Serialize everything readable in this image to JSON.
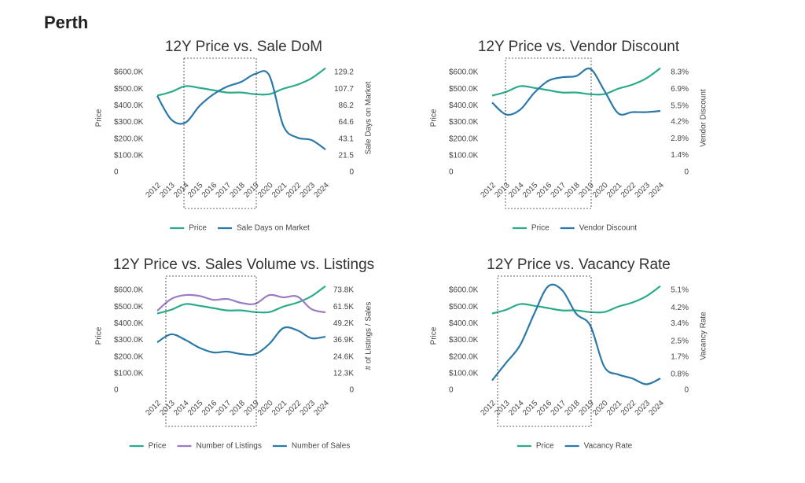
{
  "title": "Perth",
  "chart_data": [
    {
      "type": "line",
      "title": "12Y Price vs. Sale DoM",
      "ylabel": "Price",
      "y2label": "Sale Days on Market",
      "categories": [
        "2012",
        "2013",
        "2014",
        "2015",
        "2016",
        "2017",
        "2018",
        "2019",
        "2020",
        "2021",
        "2022",
        "2023",
        "2024"
      ],
      "ylim": [
        0,
        650000
      ],
      "yticks": [
        0,
        {
          "value": 100000,
          "label": "$100.0K"
        },
        {
          "value": 200000,
          "label": "$200.0K"
        },
        {
          "value": 300000,
          "label": "$300.0K"
        },
        {
          "value": 400000,
          "label": "$400.0K"
        },
        {
          "value": 500000,
          "label": "$500.0K"
        },
        {
          "value": 600000,
          "label": "$600.0K"
        }
      ],
      "y2lim": [
        0,
        140
      ],
      "y2ticks": [
        0,
        21.5,
        43.1,
        64.6,
        86.2,
        107.7,
        129.2
      ],
      "series": [
        {
          "name": "Price",
          "color": "#2bab8b",
          "values": [
            460000,
            483000,
            517000,
            507000,
            493000,
            479000,
            479000,
            469000,
            469000,
            502000,
            526000,
            564000,
            625000
          ]
        },
        {
          "name": "Sale Days on Market",
          "color": "#2b79a8",
          "axis": "y2",
          "values": [
            98.7,
            68.2,
            64.1,
            85.5,
            100.7,
            110.9,
            117.0,
            127.2,
            125.1,
            60.0,
            44.8,
            41.7,
            29.5
          ]
        }
      ]
    },
    {
      "type": "line",
      "title": "12Y Price vs. Vendor Discount",
      "ylabel": "Price",
      "y2label": "Vendor Discount",
      "categories": [
        "2012",
        "2013",
        "2014",
        "2015",
        "2016",
        "2017",
        "2018",
        "2019",
        "2020",
        "2021",
        "2022",
        "2023",
        "2024"
      ],
      "ylim": [
        0,
        650000
      ],
      "yticks": [
        0,
        {
          "value": 100000,
          "label": "$100.0K"
        },
        {
          "value": 200000,
          "label": "$200.0K"
        },
        {
          "value": 300000,
          "label": "$300.0K"
        },
        {
          "value": 400000,
          "label": "$400.0K"
        },
        {
          "value": 500000,
          "label": "$500.0K"
        },
        {
          "value": 600000,
          "label": "$600.0K"
        }
      ],
      "y2lim": [
        0,
        9
      ],
      "y2ticks": [
        0,
        {
          "value": 1.4,
          "label": "1.4%"
        },
        {
          "value": 2.8,
          "label": "2.8%"
        },
        {
          "value": 4.2,
          "label": "4.2%"
        },
        {
          "value": 5.5,
          "label": "5.5%"
        },
        {
          "value": 6.9,
          "label": "6.9%"
        },
        {
          "value": 8.3,
          "label": "8.3%"
        }
      ],
      "series": [
        {
          "name": "Price",
          "color": "#2bab8b",
          "values": [
            460000,
            483000,
            517000,
            507000,
            493000,
            479000,
            479000,
            469000,
            469000,
            502000,
            526000,
            564000,
            625000
          ]
        },
        {
          "name": "Vendor Discount",
          "color": "#2b79a8",
          "axis": "y2",
          "values": [
            5.8,
            4.8,
            5.2,
            6.6,
            7.6,
            7.9,
            8.0,
            8.6,
            6.8,
            4.9,
            5.0,
            5.0,
            5.1
          ]
        }
      ]
    },
    {
      "type": "line",
      "title": "12Y Price vs. Sales Volume vs. Listings",
      "ylabel": "Price",
      "y2label": "# of Listings / Sales",
      "categories": [
        "2012",
        "2013",
        "2014",
        "2015",
        "2016",
        "2017",
        "2018",
        "2019",
        "2020",
        "2021",
        "2022",
        "2023",
        "2024"
      ],
      "ylim": [
        0,
        650000
      ],
      "yticks": [
        0,
        {
          "value": 100000,
          "label": "$100.0K"
        },
        {
          "value": 200000,
          "label": "$200.0K"
        },
        {
          "value": 300000,
          "label": "$300.0K"
        },
        {
          "value": 400000,
          "label": "$400.0K"
        },
        {
          "value": 500000,
          "label": "$500.0K"
        },
        {
          "value": 600000,
          "label": "$600.0K"
        }
      ],
      "y2lim": [
        0,
        80000
      ],
      "y2ticks": [
        0,
        {
          "value": 12300,
          "label": "12.3K"
        },
        {
          "value": 24600,
          "label": "24.6K"
        },
        {
          "value": 36900,
          "label": "36.9K"
        },
        {
          "value": 49200,
          "label": "49.2K"
        },
        {
          "value": 61500,
          "label": "61.5K"
        },
        {
          "value": 73800,
          "label": "73.8K"
        }
      ],
      "series": [
        {
          "name": "Price",
          "color": "#2bab8b",
          "values": [
            460000,
            483000,
            517000,
            507000,
            493000,
            479000,
            479000,
            469000,
            469000,
            502000,
            526000,
            564000,
            625000
          ]
        },
        {
          "name": "Number of Listings",
          "color": "#9b7cc4",
          "axis": "y2",
          "values": [
            58700,
            67400,
            70300,
            69700,
            66800,
            67400,
            64500,
            63900,
            70300,
            68600,
            69200,
            59900,
            57500
          ]
        },
        {
          "name": "Number of Sales",
          "color": "#2b79a8",
          "axis": "y2",
          "values": [
            35400,
            41300,
            37200,
            31400,
            27900,
            28500,
            26700,
            26700,
            34300,
            45900,
            44200,
            38400,
            39500
          ]
        }
      ]
    },
    {
      "type": "line",
      "title": "12Y Price vs. Vacancy Rate",
      "ylabel": "Price",
      "y2label": "Vacancy Rate",
      "categories": [
        "2012",
        "2013",
        "2014",
        "2015",
        "2016",
        "2017",
        "2018",
        "2019",
        "2020",
        "2021",
        "2022",
        "2023",
        "2024"
      ],
      "ylim": [
        0,
        650000
      ],
      "yticks": [
        0,
        {
          "value": 100000,
          "label": "$100.0K"
        },
        {
          "value": 200000,
          "label": "$200.0K"
        },
        {
          "value": 300000,
          "label": "$300.0K"
        },
        {
          "value": 400000,
          "label": "$400.0K"
        },
        {
          "value": 500000,
          "label": "$500.0K"
        },
        {
          "value": 600000,
          "label": "$600.0K"
        }
      ],
      "y2lim": [
        0,
        5.525
      ],
      "y2ticks": [
        0,
        {
          "value": 0.8,
          "label": "0.8%"
        },
        {
          "value": 1.7,
          "label": "1.7%"
        },
        {
          "value": 2.5,
          "label": "2.5%"
        },
        {
          "value": 3.4,
          "label": "3.4%"
        },
        {
          "value": 4.2,
          "label": "4.2%"
        },
        {
          "value": 5.1,
          "label": "5.1%"
        }
      ],
      "series": [
        {
          "name": "Price",
          "color": "#2bab8b",
          "values": [
            460000,
            483000,
            517000,
            507000,
            493000,
            479000,
            479000,
            469000,
            469000,
            502000,
            526000,
            564000,
            625000
          ]
        },
        {
          "name": "Vacancy Rate",
          "color": "#2b79a8",
          "axis": "y2",
          "values": [
            0.5,
            1.4,
            2.3,
            3.9,
            5.3,
            5.1,
            3.9,
            3.3,
            1.2,
            0.8,
            0.6,
            0.3,
            0.6
          ]
        }
      ]
    }
  ]
}
